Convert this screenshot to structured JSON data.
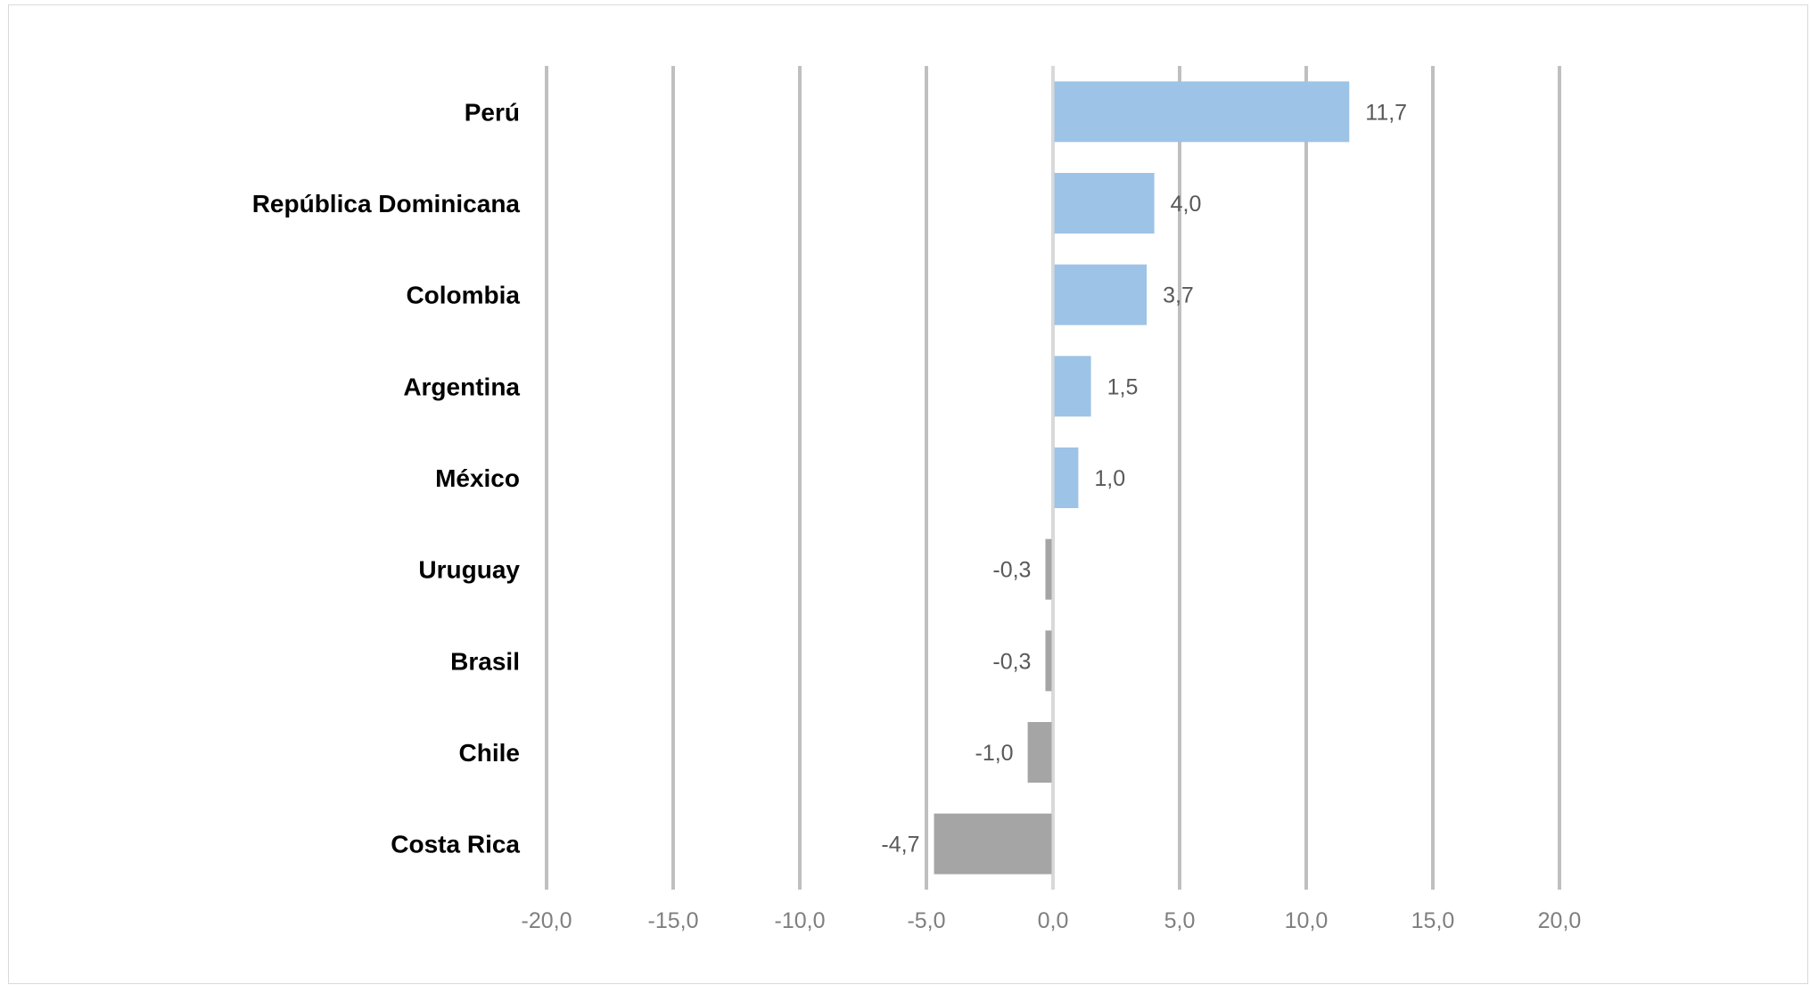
{
  "chart_data": {
    "type": "bar",
    "orientation": "horizontal",
    "categories": [
      "Perú",
      "República Dominicana",
      "Colombia",
      "Argentina",
      "México",
      "Uruguay",
      "Brasil",
      "Chile",
      "Costa Rica"
    ],
    "values": [
      11.7,
      4.0,
      3.7,
      1.5,
      1.0,
      -0.3,
      -0.3,
      -1.0,
      -4.7
    ],
    "data_labels": [
      "11,7",
      "4,0",
      "3,7",
      "1,5",
      "1,0",
      "-0,3",
      "-0,3",
      "-1,0",
      "-4,7"
    ],
    "xlim": [
      -20,
      20
    ],
    "x_ticks": [
      -20,
      -15,
      -10,
      -5,
      0,
      5,
      10,
      15,
      20
    ],
    "x_tick_labels": [
      "-20,0",
      "-15,0",
      "-10,0",
      "-5,0",
      "0,0",
      "5,0",
      "10,0",
      "15,0",
      "20,0"
    ],
    "grid": "vertical",
    "colors": {
      "positive": "#9dc3e6",
      "negative": "#a5a5a5",
      "grid": "#bfbfbf",
      "zero_line": "#d9d9d9"
    },
    "title": "",
    "xlabel": "",
    "ylabel": ""
  }
}
